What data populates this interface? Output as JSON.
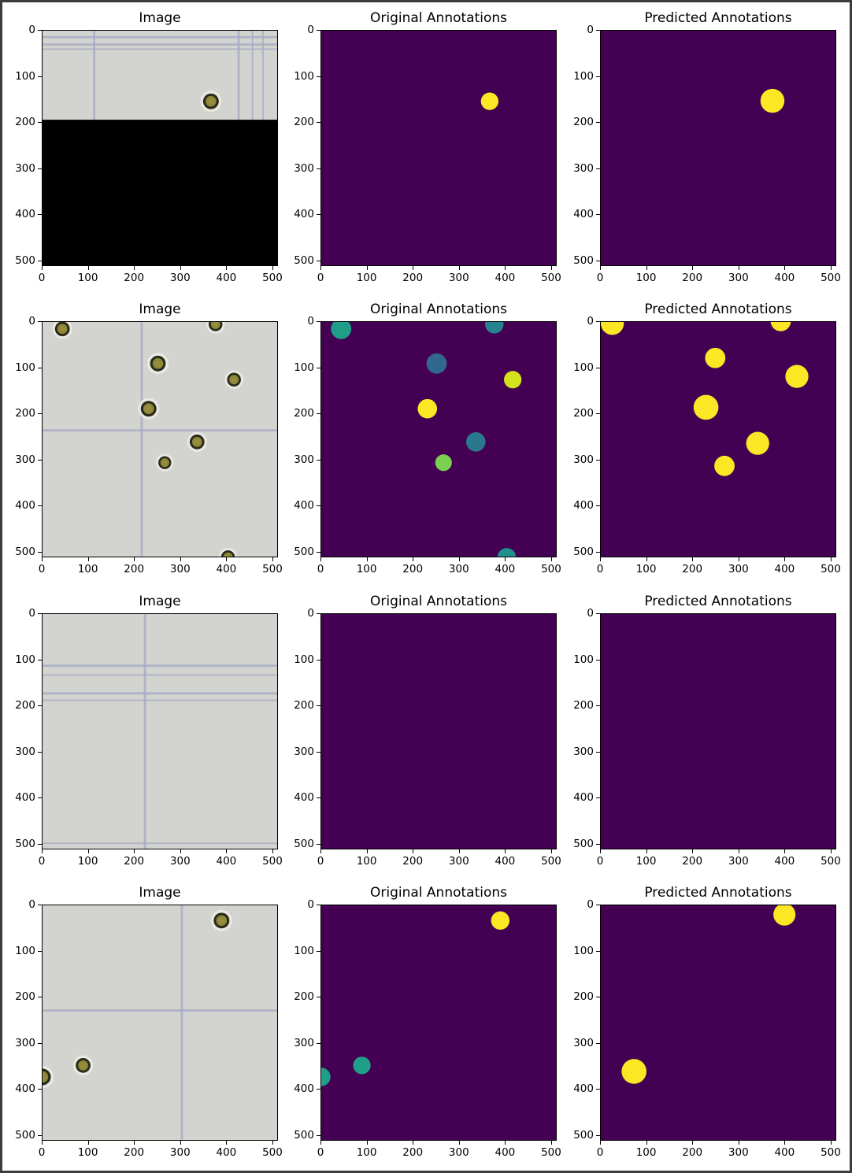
{
  "rows": [
    {
      "panels": [
        {
          "title": "Image",
          "kind": "image",
          "scene": 1,
          "black_region_from_y": 193
        },
        {
          "title": "Original Annotations",
          "kind": "mask",
          "blobs": [
            {
              "x": 365,
              "y": 153,
              "r": 19,
              "color": "#fde725"
            }
          ]
        },
        {
          "title": "Predicted Annotations",
          "kind": "mask",
          "blobs": [
            {
              "x": 372,
              "y": 152,
              "r": 26,
              "color": "#fde725"
            }
          ]
        }
      ]
    },
    {
      "panels": [
        {
          "title": "Image",
          "kind": "image",
          "scene": 2
        },
        {
          "title": "Original Annotations",
          "kind": "mask",
          "blobs": [
            {
              "x": 43,
              "y": 15,
              "r": 22,
              "color": "#1f9e89"
            },
            {
              "x": 375,
              "y": 5,
              "r": 20,
              "color": "#26828e"
            },
            {
              "x": 250,
              "y": 90,
              "r": 22,
              "color": "#31688e"
            },
            {
              "x": 415,
              "y": 125,
              "r": 19,
              "color": "#d2e21b"
            },
            {
              "x": 230,
              "y": 188,
              "r": 21,
              "color": "#fde725"
            },
            {
              "x": 335,
              "y": 260,
              "r": 21,
              "color": "#2a788e"
            },
            {
              "x": 265,
              "y": 305,
              "r": 18,
              "color": "#7ad151"
            },
            {
              "x": 402,
              "y": 510,
              "r": 20,
              "color": "#21918c"
            }
          ]
        },
        {
          "title": "Predicted Annotations",
          "kind": "mask",
          "blobs": [
            {
              "x": 25,
              "y": 3,
              "r": 25,
              "color": "#fde725"
            },
            {
              "x": 390,
              "y": -2,
              "r": 22,
              "color": "#fde725"
            },
            {
              "x": 248,
              "y": 78,
              "r": 22,
              "color": "#fde725"
            },
            {
              "x": 425,
              "y": 118,
              "r": 25,
              "color": "#fde725"
            },
            {
              "x": 228,
              "y": 185,
              "r": 27,
              "color": "#fde725"
            },
            {
              "x": 340,
              "y": 263,
              "r": 25,
              "color": "#fde725"
            },
            {
              "x": 268,
              "y": 312,
              "r": 22,
              "color": "#fde725"
            }
          ]
        }
      ]
    },
    {
      "panels": [
        {
          "title": "Image",
          "kind": "image",
          "scene": 3
        },
        {
          "title": "Original Annotations",
          "kind": "mask",
          "blobs": []
        },
        {
          "title": "Predicted Annotations",
          "kind": "mask",
          "blobs": []
        }
      ]
    },
    {
      "panels": [
        {
          "title": "Image",
          "kind": "image",
          "scene": 4
        },
        {
          "title": "Original Annotations",
          "kind": "mask",
          "blobs": [
            {
              "x": 388,
              "y": 33,
              "r": 20,
              "color": "#fde725"
            },
            {
              "x": 88,
              "y": 347,
              "r": 19,
              "color": "#1f9e89"
            },
            {
              "x": 0,
              "y": 372,
              "r": 20,
              "color": "#1f9e89"
            }
          ]
        },
        {
          "title": "Predicted Annotations",
          "kind": "mask",
          "blobs": [
            {
              "x": 398,
              "y": 20,
              "r": 24,
              "color": "#fde725"
            },
            {
              "x": 72,
              "y": 360,
              "r": 27,
              "color": "#fde725"
            }
          ]
        }
      ]
    }
  ],
  "axis": {
    "ticks": [
      0,
      100,
      200,
      300,
      400,
      500
    ],
    "ylim": [
      0,
      512
    ],
    "xlim": [
      0,
      512
    ],
    "mask_background": "#440154"
  }
}
